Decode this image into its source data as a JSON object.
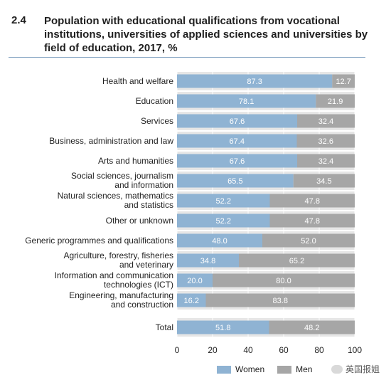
{
  "header": {
    "number": "2.4",
    "title": "Population with educational qualifications from vocational institutions, universities of applied sciences and universities by field of education, 2017, %"
  },
  "legend": {
    "women": "Women",
    "men": "Men"
  },
  "watermark": "英国报姐",
  "colors": {
    "women": "#8fb3d3",
    "men": "#a6a6a6",
    "rule": "#7f9fbf",
    "track": "#e6e6e6"
  },
  "chart_data": {
    "type": "bar",
    "orientation": "horizontal",
    "stacked": true,
    "categories": [
      [
        "Health and welfare"
      ],
      [
        "Education"
      ],
      [
        "Services"
      ],
      [
        "Business, administration and law"
      ],
      [
        "Arts and humanities"
      ],
      [
        "Social sciences, journalism",
        "and information"
      ],
      [
        "Natural sciences, mathematics",
        "and statistics"
      ],
      [
        "Other or unknown"
      ],
      [
        "Generic programmes and qualifications"
      ],
      [
        "Agriculture, forestry, fisheries",
        "and veterinary"
      ],
      [
        "Information and communication",
        "technologies (ICT)"
      ],
      [
        "Engineering, manufacturing",
        "and construction"
      ],
      [
        "Total"
      ]
    ],
    "series": [
      {
        "name": "Women",
        "values": [
          "87.3",
          "78.1",
          "67.6",
          "67.4",
          "67.6",
          "65.5",
          "52.2",
          "52.2",
          "48.0",
          "34.8",
          "20.0",
          "16.2",
          "51.8"
        ]
      },
      {
        "name": "Men",
        "values": [
          "12.7",
          "21.9",
          "32.4",
          "32.6",
          "32.4",
          "34.5",
          "47.8",
          "47.8",
          "52.0",
          "65.2",
          "80.0",
          "83.8",
          "48.2"
        ]
      }
    ],
    "xlim": [
      0,
      100
    ],
    "xticks": [
      "0",
      "20",
      "40",
      "60",
      "80",
      "100"
    ],
    "grid": "vertical",
    "legend_position": "bottom-right"
  }
}
